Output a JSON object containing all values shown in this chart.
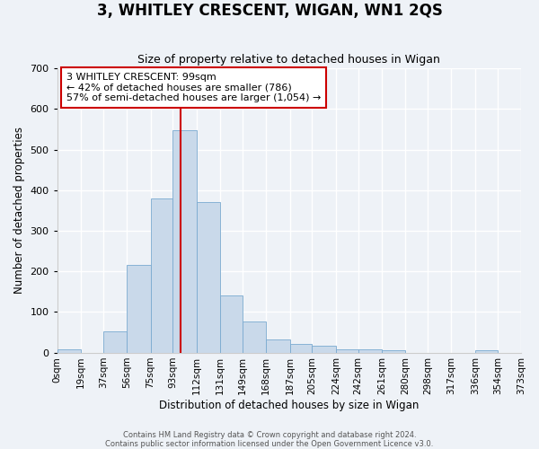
{
  "title": "3, WHITLEY CRESCENT, WIGAN, WN1 2QS",
  "subtitle": "Size of property relative to detached houses in Wigan",
  "xlabel": "Distribution of detached houses by size in Wigan",
  "ylabel": "Number of detached properties",
  "bar_color": "#c9d9ea",
  "bar_edge_color": "#7aaad0",
  "background_color": "#eef2f7",
  "grid_color": "#ffffff",
  "bin_edges": [
    0,
    19,
    37,
    56,
    75,
    93,
    112,
    131,
    149,
    168,
    187,
    205,
    224,
    242,
    261,
    280,
    298,
    317,
    336,
    354,
    373
  ],
  "bin_labels": [
    "0sqm",
    "19sqm",
    "37sqm",
    "56sqm",
    "75sqm",
    "93sqm",
    "112sqm",
    "131sqm",
    "149sqm",
    "168sqm",
    "187sqm",
    "205sqm",
    "224sqm",
    "242sqm",
    "261sqm",
    "280sqm",
    "298sqm",
    "317sqm",
    "336sqm",
    "354sqm",
    "373sqm"
  ],
  "bar_heights": [
    7,
    0,
    53,
    215,
    380,
    547,
    370,
    140,
    76,
    33,
    21,
    16,
    8,
    7,
    5,
    0,
    0,
    0,
    5,
    0
  ],
  "vline_x": 99,
  "vline_color": "#cc0000",
  "ylim": [
    0,
    700
  ],
  "yticks": [
    0,
    100,
    200,
    300,
    400,
    500,
    600,
    700
  ],
  "annotation_line1": "3 WHITLEY CRESCENT: 99sqm",
  "annotation_line2": "← 42% of detached houses are smaller (786)",
  "annotation_line3": "57% of semi-detached houses are larger (1,054) →",
  "annotation_box_color": "#ffffff",
  "annotation_box_edge": "#cc0000",
  "footer1": "Contains HM Land Registry data © Crown copyright and database right 2024.",
  "footer2": "Contains public sector information licensed under the Open Government Licence v3.0."
}
